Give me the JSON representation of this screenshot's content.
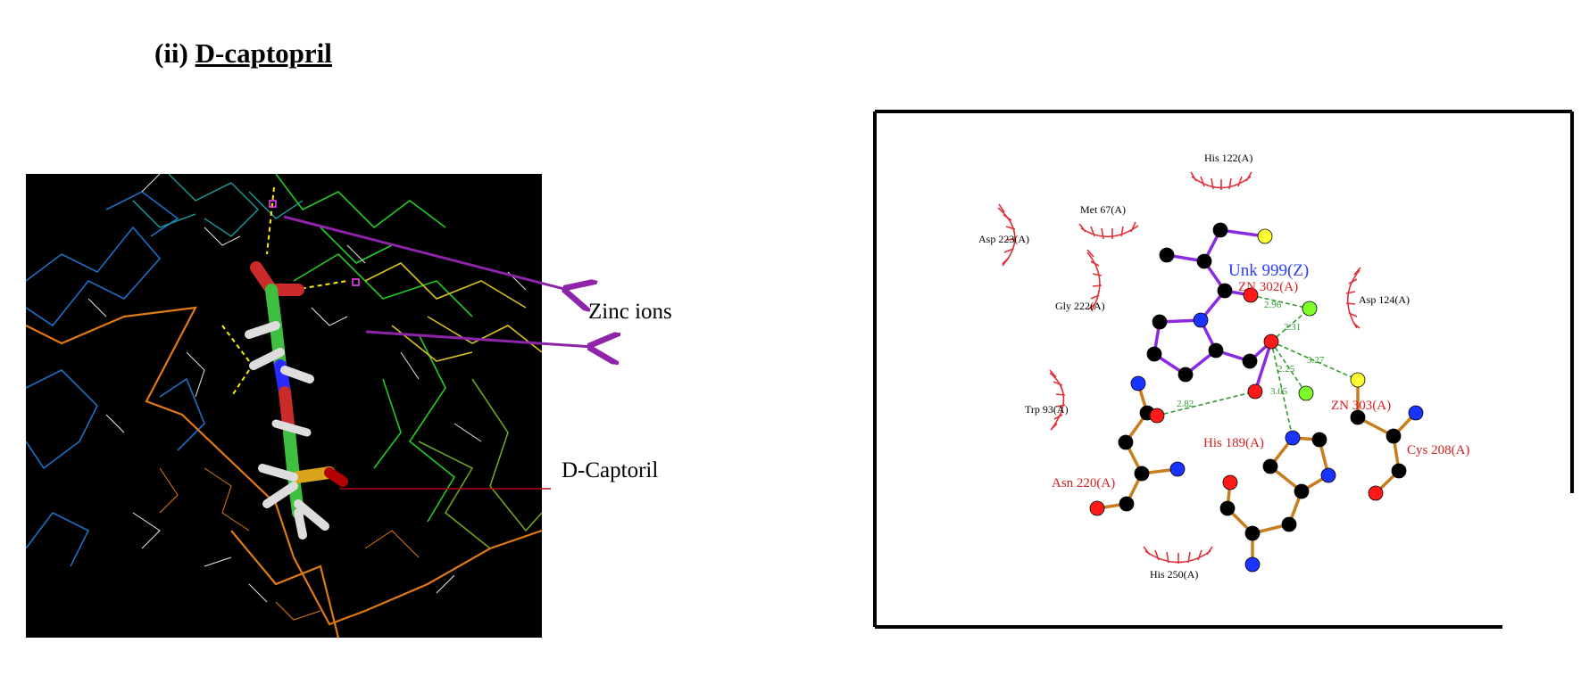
{
  "heading": {
    "numeral": "(ii)",
    "name": "D-captopril"
  },
  "callouts": {
    "zinc": "Zinc ions",
    "drug": "D-Captoril"
  },
  "ligplot": {
    "ligand": "Unk 999(Z)",
    "zinc_labels": [
      "ZN 302(A)",
      "ZN 303(A)"
    ],
    "bonded_residues": [
      "His 189(A)",
      "Asn 220(A)",
      "Cys 208(A)"
    ],
    "hydrophobic_residues": [
      "His 122(A)",
      "Met 67(A)",
      "Asp 223(A)",
      "Gly 222(A)",
      "Asp 124(A)",
      "Trp 93(A)",
      "His 250(A)"
    ],
    "distances": [
      "2.96",
      "2.31",
      "2.25",
      "3.27",
      "3.05",
      "2.82"
    ]
  },
  "colors": {
    "ligand_bond": "#8a2be2",
    "residue_bond": "#c87d1e",
    "hbond": "#2e9b2e",
    "oxygen": "#ff1a1a",
    "nitrogen": "#1a33ff",
    "sulfur": "#ffff33",
    "zinc": "#7fff2a",
    "hydrophobic": "#e0303a",
    "callout_arrow": "#8e24aa",
    "drug_arrow": "#b3001b"
  }
}
